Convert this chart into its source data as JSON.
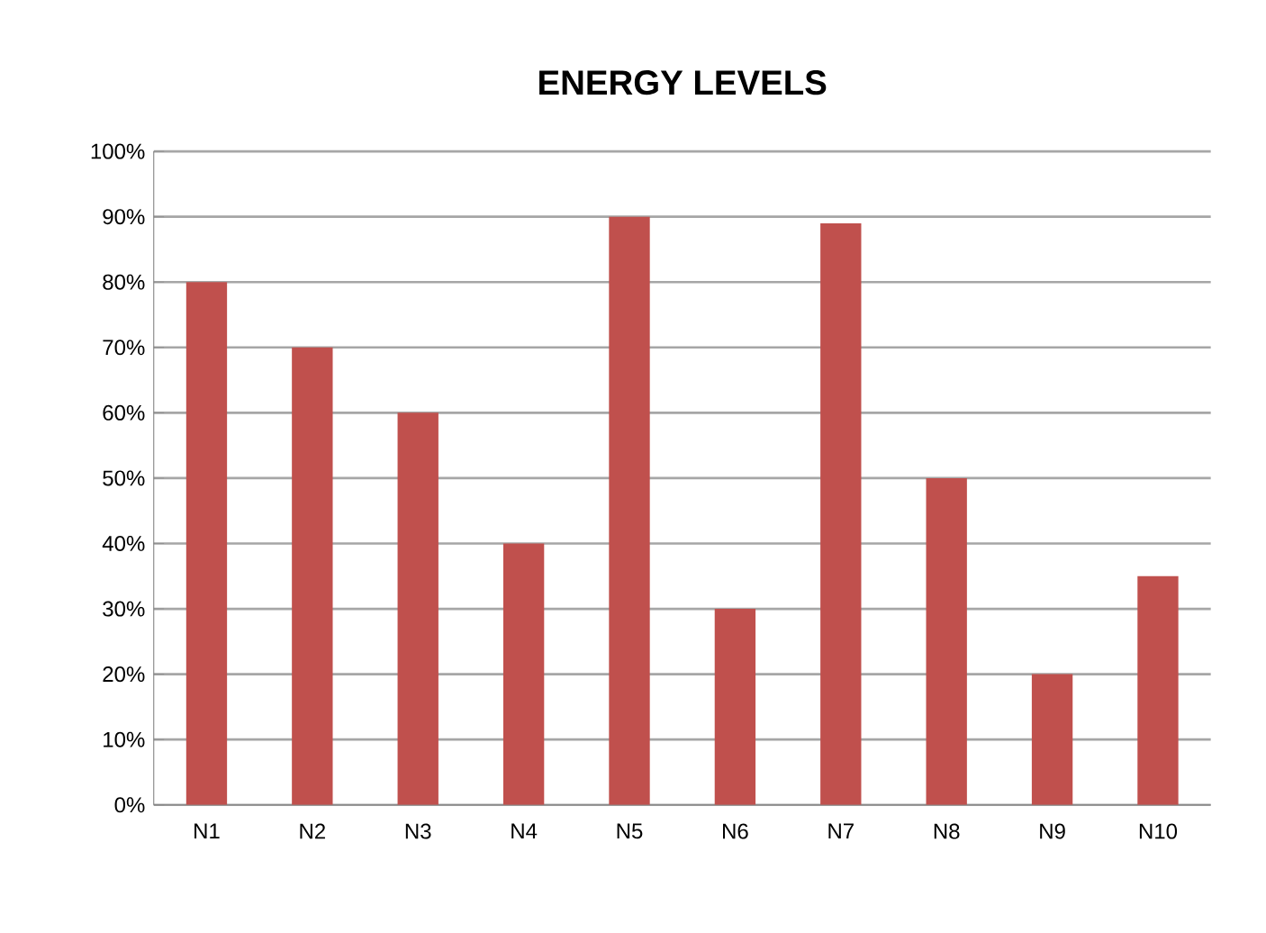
{
  "chart_data": {
    "type": "bar",
    "title": "ENERGY LEVELS",
    "categories": [
      "N1",
      "N2",
      "N3",
      "N4",
      "N5",
      "N6",
      "N7",
      "N8",
      "N9",
      "N10"
    ],
    "values": [
      80,
      70,
      60,
      40,
      90,
      30,
      89,
      50,
      20,
      35
    ],
    "color": "#c0504d",
    "ylim": [
      0,
      100
    ],
    "yticks": [
      {
        "value": 0,
        "label": "0%"
      },
      {
        "value": 10,
        "label": "10%"
      },
      {
        "value": 20,
        "label": "20%"
      },
      {
        "value": 30,
        "label": "30%"
      },
      {
        "value": 40,
        "label": "40%"
      },
      {
        "value": 50,
        "label": "50%"
      },
      {
        "value": 60,
        "label": "60%"
      },
      {
        "value": 70,
        "label": "70%"
      },
      {
        "value": 80,
        "label": "80%"
      },
      {
        "value": 90,
        "label": "90%"
      },
      {
        "value": 100,
        "label": "100%"
      }
    ],
    "grid": "y"
  }
}
